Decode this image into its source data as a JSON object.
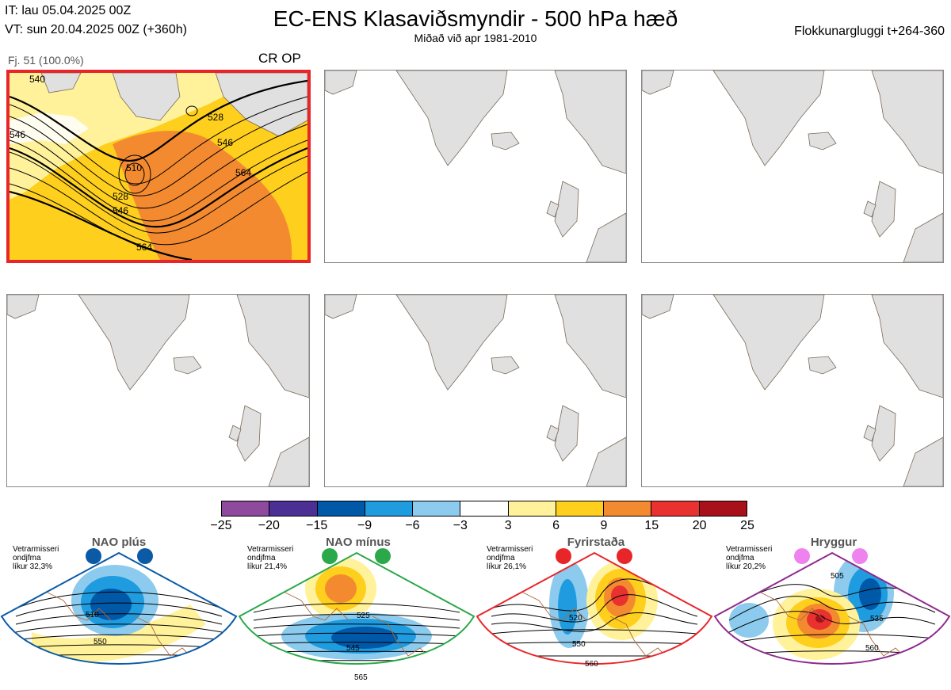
{
  "header": {
    "initial_time": "IT: lau 05.04.2025 00Z",
    "valid_time": "VT: sun 20.04.2025 00Z  (+360h)",
    "title": "EC-ENS Klasaviðsmyndir - 500 hPa hæð",
    "subtitle": "Miðað við apr 1981-2010",
    "cluster_window": "Flokkunargluggi t+264-360"
  },
  "panels": {
    "member_label": "Fj. 51 (100.0%)",
    "crop_label": "CR OP",
    "contour_labels": [
      "540",
      "528",
      "546",
      "564",
      "510",
      "528",
      "546",
      "564",
      "546"
    ]
  },
  "colors": {
    "highlight_border": "#e8262a",
    "land": "#e0e0e0",
    "coast": "#7a6a5a",
    "contour": "#000000"
  },
  "chart_data": {
    "type": "heatmap",
    "title": "EC-ENS Klasaviðsmyndir - 500 hPa hæð",
    "colorbar": {
      "ticks": [
        "−25",
        "−20",
        "−15",
        "−9",
        "−6",
        "−3",
        "3",
        "6",
        "9",
        "15",
        "20",
        "25"
      ],
      "values": [
        -25,
        -20,
        -15,
        -9,
        -6,
        -3,
        3,
        6,
        9,
        15,
        20,
        25
      ],
      "colors": [
        "#8e4a9c",
        "#4b2f94",
        "#0058a8",
        "#1f9ce0",
        "#8ccbee",
        "#ffffff",
        "#fff29a",
        "#ffcf1e",
        "#f38a30",
        "#e93230",
        "#a8101a"
      ]
    }
  },
  "regimes": [
    {
      "name": "NAO plús",
      "note_l1": "Vetrarmisseri",
      "note_l2": "ondjfma",
      "note_l3": "líkur 32,3%",
      "border": "#0a5aa6",
      "dot": "#0a5aa6",
      "labels": [
        "510",
        "550"
      ]
    },
    {
      "name": "NAO mínus",
      "note_l1": "Vetrarmisseri",
      "note_l2": "ondjfma",
      "note_l3": "líkur 21,4%",
      "border": "#2aa84a",
      "dot": "#2aa84a",
      "labels": [
        "525",
        "545",
        "565"
      ]
    },
    {
      "name": "Fyrirstaða",
      "note_l1": "Vetrarmisseri",
      "note_l2": "ondjfma",
      "note_l3": "líkur 26,1%",
      "border": "#e8262a",
      "dot": "#e8262a",
      "labels": [
        "520",
        "550",
        "560"
      ]
    },
    {
      "name": "Hryggur",
      "note_l1": "Vetrarmisseri",
      "note_l2": "ondjfma",
      "note_l3": "líkur 20,2%",
      "border": "#8e2a8e",
      "dot": "#ee82ee",
      "labels": [
        "505",
        "535",
        "560"
      ]
    }
  ]
}
